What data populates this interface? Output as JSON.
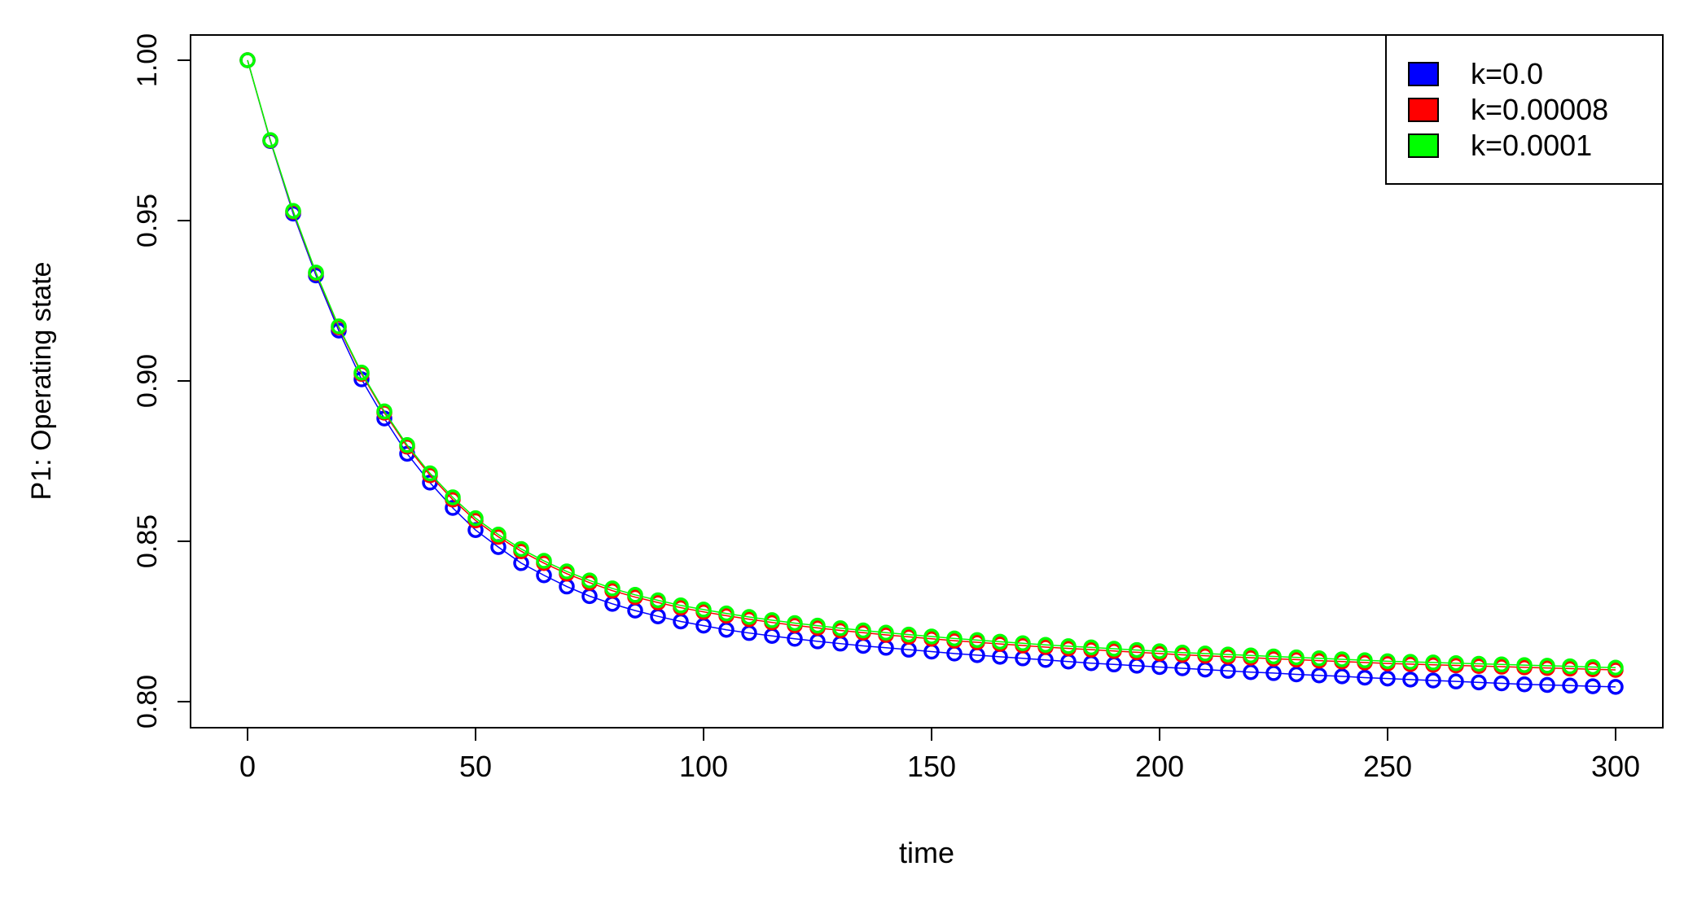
{
  "chart_data": {
    "type": "line",
    "xlabel": "time",
    "ylabel": "P1: Operating state",
    "xlim": [
      0,
      300
    ],
    "ylim": [
      0.8,
      1.0
    ],
    "x_ticks": [
      0,
      50,
      100,
      150,
      200,
      250,
      300
    ],
    "x_tick_labels": [
      "0",
      "50",
      "100",
      "150",
      "200",
      "250",
      "300"
    ],
    "y_ticks": [
      0.8,
      0.85,
      0.9,
      0.95,
      1.0
    ],
    "y_tick_labels": [
      "0.80",
      "0.85",
      "0.90",
      "0.95",
      "1.00"
    ],
    "grid": false,
    "legend_position": "top-right",
    "x": [
      0,
      5,
      10,
      15,
      20,
      25,
      30,
      35,
      40,
      45,
      50,
      55,
      60,
      65,
      70,
      75,
      80,
      85,
      90,
      95,
      100,
      105,
      110,
      115,
      120,
      125,
      130,
      135,
      140,
      145,
      150,
      155,
      160,
      165,
      170,
      175,
      180,
      185,
      190,
      195,
      200,
      205,
      210,
      215,
      220,
      225,
      230,
      235,
      240,
      245,
      250,
      255,
      260,
      265,
      270,
      275,
      280,
      285,
      290,
      295,
      300
    ],
    "series": [
      {
        "name": "k=0.0",
        "color": "#0000ff",
        "values": [
          1.0,
          0.9748,
          0.9522,
          0.9329,
          0.9157,
          0.9005,
          0.8883,
          0.8773,
          0.8683,
          0.8604,
          0.8535,
          0.8482,
          0.8432,
          0.8394,
          0.8359,
          0.8329,
          0.8305,
          0.8284,
          0.8266,
          0.825,
          0.8237,
          0.8224,
          0.8214,
          0.8205,
          0.8196,
          0.8188,
          0.8181,
          0.8174,
          0.8168,
          0.8162,
          0.8156,
          0.815,
          0.8145,
          0.814,
          0.8135,
          0.813,
          0.8125,
          0.812,
          0.8116,
          0.8112,
          0.8108,
          0.8104,
          0.81,
          0.8096,
          0.8092,
          0.8089,
          0.8085,
          0.8082,
          0.8079,
          0.8075,
          0.8072,
          0.8069,
          0.8066,
          0.8063,
          0.806,
          0.8057,
          0.8054,
          0.8052,
          0.805,
          0.8048,
          0.8046
        ]
      },
      {
        "name": "k=0.00008",
        "color": "#ff0000",
        "values": [
          1.0,
          0.975,
          0.9528,
          0.9336,
          0.9167,
          0.9022,
          0.8901,
          0.8795,
          0.8706,
          0.863,
          0.8565,
          0.8514,
          0.8469,
          0.8432,
          0.8399,
          0.8371,
          0.8346,
          0.8326,
          0.8309,
          0.8293,
          0.828,
          0.8268,
          0.8257,
          0.8247,
          0.8238,
          0.823,
          0.8222,
          0.8215,
          0.8208,
          0.8202,
          0.8196,
          0.819,
          0.8185,
          0.818,
          0.8175,
          0.817,
          0.8166,
          0.8162,
          0.8158,
          0.8154,
          0.815,
          0.8146,
          0.8143,
          0.814,
          0.8137,
          0.8134,
          0.8131,
          0.8128,
          0.8125,
          0.8122,
          0.8119,
          0.8117,
          0.8115,
          0.8113,
          0.8111,
          0.8109,
          0.8107,
          0.8105,
          0.8103,
          0.8101,
          0.8099
        ]
      },
      {
        "name": "k=0.0001",
        "color": "#00ff00",
        "values": [
          1.0,
          0.9751,
          0.953,
          0.9338,
          0.917,
          0.9026,
          0.8905,
          0.88,
          0.8712,
          0.8637,
          0.8572,
          0.8521,
          0.8476,
          0.8439,
          0.8406,
          0.8378,
          0.8353,
          0.8333,
          0.8316,
          0.83,
          0.8287,
          0.8275,
          0.8264,
          0.8254,
          0.8245,
          0.8237,
          0.8229,
          0.8222,
          0.8215,
          0.8209,
          0.8203,
          0.8197,
          0.8192,
          0.8187,
          0.8182,
          0.8177,
          0.8173,
          0.8169,
          0.8165,
          0.8161,
          0.8157,
          0.8153,
          0.815,
          0.8147,
          0.8144,
          0.8141,
          0.8138,
          0.8135,
          0.8132,
          0.8129,
          0.8126,
          0.8124,
          0.8122,
          0.812,
          0.8118,
          0.8116,
          0.8114,
          0.8112,
          0.811,
          0.8108,
          0.8106
        ]
      }
    ]
  }
}
